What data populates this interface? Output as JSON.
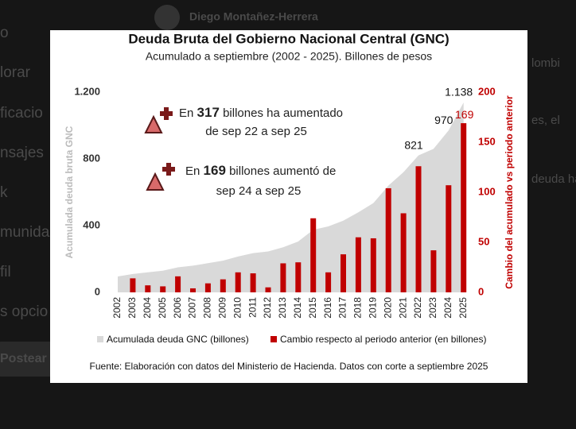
{
  "background": {
    "author": "Diego Montañez-Herrera",
    "menu": [
      "o",
      "lorar",
      "ficacio",
      "nsajes",
      "k",
      "munida",
      "fil",
      "s opcio"
    ],
    "button": "Postear",
    "post_fragments": [
      "lombi",
      "es, el",
      "deuda ha"
    ]
  },
  "chart_data": {
    "type": "combo",
    "title": "Deuda Bruta del Gobierno Nacional Central (GNC)",
    "subtitle": "Acumulado a septiembre (2002 - 2025). Billones de pesos",
    "categories": [
      "2002",
      "2003",
      "2004",
      "2005",
      "2006",
      "2007",
      "2008",
      "2009",
      "2010",
      "2011",
      "2012",
      "2013",
      "2014",
      "2015",
      "2016",
      "2017",
      "2018",
      "2019",
      "2020",
      "2021",
      "2022",
      "2023",
      "2024",
      "2025"
    ],
    "y_label": "Acumulada deuda bruta GNC",
    "y2_label": "Cambio del acumulado vs periodo anterior",
    "ylim": [
      0,
      1200
    ],
    "yticks": [
      0,
      400,
      800,
      {
        "value": 1200,
        "label": "1.200"
      }
    ],
    "y2lim": [
      0,
      200
    ],
    "y2ticks": [
      0,
      50,
      100,
      150,
      200
    ],
    "series": [
      {
        "name": "Acumulada deuda GNC (billones)",
        "type": "area",
        "color": "#d9d9d9",
        "axis": "y",
        "values": [
          95,
          110,
          120,
          130,
          150,
          160,
          175,
          190,
          215,
          235,
          245,
          270,
          305,
          375,
          395,
          430,
          480,
          535,
          640,
          720,
          821,
          860,
          970,
          1138
        ],
        "value_labels": [
          null,
          null,
          null,
          null,
          null,
          null,
          null,
          null,
          null,
          null,
          null,
          null,
          null,
          null,
          null,
          null,
          null,
          null,
          null,
          null,
          "821",
          null,
          "970",
          "1.138"
        ]
      },
      {
        "name": "Cambio respecto al periodo anterior (en billones)",
        "type": "bar",
        "color": "#c00000",
        "axis": "y2",
        "values": [
          null,
          14,
          7,
          6,
          16,
          4,
          9,
          13,
          20,
          19,
          5,
          29,
          30,
          74,
          20,
          38,
          55,
          54,
          104,
          79,
          126,
          42,
          107,
          169
        ],
        "value_labels": [
          null,
          null,
          null,
          null,
          null,
          null,
          null,
          null,
          null,
          null,
          null,
          null,
          null,
          null,
          null,
          null,
          null,
          null,
          null,
          null,
          null,
          null,
          null,
          "169"
        ]
      }
    ],
    "annotations": [
      {
        "prefix": "En",
        "number": "317",
        "suffix": "billones ha aumentado",
        "line2": "de sep 22 a sep 25"
      },
      {
        "prefix": "En",
        "number": "169",
        "suffix": "billones aumentó de",
        "line2": "sep 24 a sep 25"
      }
    ],
    "source": "Fuente: Elaboración con datos del Ministerio de Hacienda. Datos con corte a septiembre 2025"
  }
}
